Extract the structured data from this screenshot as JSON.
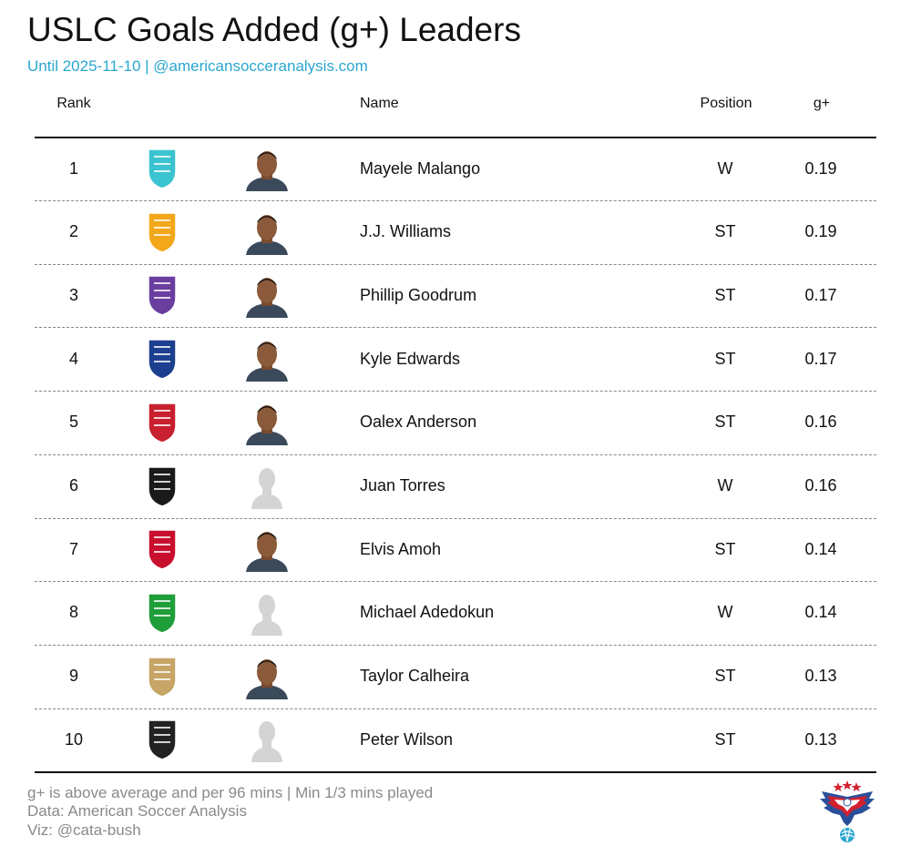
{
  "title": "USLC Goals Added (g+) Leaders",
  "subtitle": "Until 2025-11-10 | @americansocceranalysis.com",
  "headers": {
    "rank": "Rank",
    "name": "Name",
    "position": "Position",
    "gplus": "g+"
  },
  "rows": [
    {
      "rank": "1",
      "name": "Mayele Malango",
      "position": "W",
      "gplus": "0.19",
      "team_icon": "monterey-bay-crest-icon",
      "player_icon": "player-photo-icon",
      "team_color": "#3cc3d0"
    },
    {
      "rank": "2",
      "name": "J.J. Williams",
      "position": "ST",
      "gplus": "0.19",
      "team_icon": "rhode-island-crest-icon",
      "player_icon": "player-photo-icon",
      "team_color": "#f3a81b"
    },
    {
      "rank": "3",
      "name": "Phillip Goodrum",
      "position": "ST",
      "gplus": "0.17",
      "team_icon": "louisville-city-crest-icon",
      "player_icon": "player-photo-icon",
      "team_color": "#6a3fa0"
    },
    {
      "rank": "4",
      "name": "Kyle Edwards",
      "position": "ST",
      "gplus": "0.17",
      "team_icon": "hartford-athletic-crest-icon",
      "player_icon": "player-photo-icon",
      "team_color": "#1d3f8f"
    },
    {
      "rank": "5",
      "name": "Oalex Anderson",
      "position": "ST",
      "gplus": "0.16",
      "team_icon": "north-carolina-crest-icon",
      "player_icon": "player-photo-icon",
      "team_color": "#c8202f"
    },
    {
      "rank": "6",
      "name": "Juan Torres",
      "position": "W",
      "gplus": "0.16",
      "team_icon": "charleston-crest-icon",
      "player_icon": "player-silhouette-icon",
      "team_color": "#1a1a1a"
    },
    {
      "rank": "7",
      "name": "Elvis Amoh",
      "position": "ST",
      "gplus": "0.14",
      "team_icon": "indy-eleven-crest-icon",
      "player_icon": "player-photo-icon",
      "team_color": "#c8102e"
    },
    {
      "rank": "8",
      "name": "Michael Adedokun",
      "position": "W",
      "gplus": "0.14",
      "team_icon": "lexington-crest-icon",
      "player_icon": "player-silhouette-icon",
      "team_color": "#1f9e3a"
    },
    {
      "rank": "9",
      "name": "Taylor Calheira",
      "position": "ST",
      "gplus": "0.13",
      "team_icon": "lafc-crest-icon",
      "player_icon": "player-photo-icon",
      "team_color": "#c6a566"
    },
    {
      "rank": "10",
      "name": "Peter Wilson",
      "position": "ST",
      "gplus": "0.13",
      "team_icon": "oakland-roots-crest-icon",
      "player_icon": "player-silhouette-icon",
      "team_color": "#222222"
    }
  ],
  "footer": {
    "line1": "g+ is above average and per 96 mins | Min 1/3 mins played",
    "line2": "Data: American Soccer Analysis",
    "line3": "Viz: @cata-bush"
  },
  "chart_data": {
    "type": "table",
    "title": "USLC Goals Added (g+) Leaders",
    "subtitle": "Until 2025-11-10 | @americansocceranalysis.com",
    "columns": [
      "Rank",
      "Name",
      "Position",
      "g+"
    ],
    "rows": [
      [
        1,
        "Mayele Malango",
        "W",
        0.19
      ],
      [
        2,
        "J.J. Williams",
        "ST",
        0.19
      ],
      [
        3,
        "Phillip Goodrum",
        "ST",
        0.17
      ],
      [
        4,
        "Kyle Edwards",
        "ST",
        0.17
      ],
      [
        5,
        "Oalex Anderson",
        "ST",
        0.16
      ],
      [
        6,
        "Juan Torres",
        "W",
        0.16
      ],
      [
        7,
        "Elvis Amoh",
        "ST",
        0.14
      ],
      [
        8,
        "Michael Adedokun",
        "W",
        0.14
      ],
      [
        9,
        "Taylor Calheira",
        "ST",
        0.13
      ],
      [
        10,
        "Peter Wilson",
        "ST",
        0.13
      ]
    ]
  }
}
